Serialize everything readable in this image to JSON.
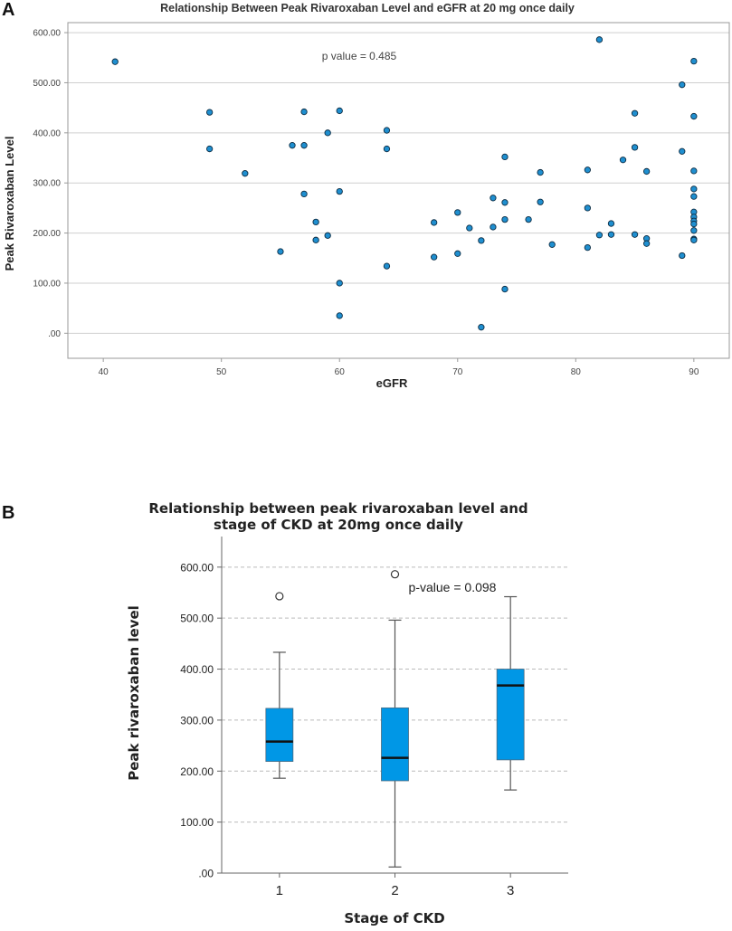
{
  "panels": {
    "a": "A",
    "b": "B"
  },
  "chart_data": [
    {
      "type": "scatter",
      "title": "Relationship Between Peak Rivaroxaban Level and eGFR at 20 mg once daily",
      "xlabel": "eGFR",
      "ylabel": "Peak Rivaroxaban Level",
      "xlim": [
        37,
        93
      ],
      "ylim": [
        -50,
        620
      ],
      "xticks": [
        40,
        50,
        60,
        70,
        80,
        90
      ],
      "yticks": [
        0,
        100,
        200,
        300,
        400,
        500,
        600
      ],
      "ytick_labels": [
        ".00",
        "100.00",
        "200.00",
        "300.00",
        "400.00",
        "500.00",
        "600.00"
      ],
      "grid": true,
      "annotation": "p value = 0.485",
      "marker_color": "#1f8fd0",
      "points": [
        [
          41,
          542
        ],
        [
          49,
          441
        ],
        [
          49,
          368
        ],
        [
          52,
          319
        ],
        [
          55,
          163
        ],
        [
          56,
          375
        ],
        [
          57,
          442
        ],
        [
          57,
          375
        ],
        [
          57,
          278
        ],
        [
          58,
          222
        ],
        [
          58,
          186
        ],
        [
          59,
          400
        ],
        [
          59,
          195
        ],
        [
          60,
          444
        ],
        [
          60,
          283
        ],
        [
          60,
          100
        ],
        [
          60,
          35
        ],
        [
          64,
          405
        ],
        [
          64,
          368
        ],
        [
          64,
          134
        ],
        [
          68,
          221
        ],
        [
          68,
          152
        ],
        [
          70,
          241
        ],
        [
          70,
          159
        ],
        [
          71,
          210
        ],
        [
          72,
          185
        ],
        [
          72,
          12
        ],
        [
          73,
          270
        ],
        [
          73,
          212
        ],
        [
          74,
          352
        ],
        [
          74,
          261
        ],
        [
          74,
          227
        ],
        [
          74,
          88
        ],
        [
          76,
          227
        ],
        [
          77,
          321
        ],
        [
          77,
          262
        ],
        [
          78,
          177
        ],
        [
          81,
          326
        ],
        [
          81,
          250
        ],
        [
          81,
          171
        ],
        [
          82,
          586
        ],
        [
          82,
          196
        ],
        [
          83,
          219
        ],
        [
          83,
          197
        ],
        [
          84,
          346
        ],
        [
          85,
          439
        ],
        [
          85,
          371
        ],
        [
          85,
          197
        ],
        [
          86,
          323
        ],
        [
          86,
          189
        ],
        [
          86,
          179
        ],
        [
          89,
          496
        ],
        [
          89,
          363
        ],
        [
          89,
          155
        ],
        [
          90,
          543
        ],
        [
          90,
          433
        ],
        [
          90,
          324
        ],
        [
          90,
          288
        ],
        [
          90,
          273
        ],
        [
          90,
          242
        ],
        [
          90,
          232
        ],
        [
          90,
          224
        ],
        [
          90,
          218
        ],
        [
          90,
          205
        ],
        [
          90,
          188
        ],
        [
          90,
          186
        ]
      ]
    },
    {
      "type": "box",
      "title_lines": [
        "Relationship between peak rivaroxaban level and",
        "stage of CKD at 20mg once daily"
      ],
      "xlabel": "Stage of CKD",
      "ylabel": "Peak rivaroxaban level",
      "categories": [
        "1",
        "2",
        "3"
      ],
      "ylim": [
        0,
        660
      ],
      "yticks": [
        0,
        100,
        200,
        300,
        400,
        500,
        600
      ],
      "ytick_labels": [
        ".00",
        "100.00",
        "200.00",
        "300.00",
        "400.00",
        "500.00",
        "600.00"
      ],
      "grid": true,
      "annotation": "p-value = 0.098",
      "box_color": "#0097e6",
      "boxes": [
        {
          "min": 186,
          "q1": 219,
          "median": 258,
          "q3": 323,
          "max": 433,
          "outliers": [
            543
          ]
        },
        {
          "min": 12,
          "q1": 181,
          "median": 226,
          "q3": 324,
          "max": 496,
          "outliers": [
            586
          ]
        },
        {
          "min": 163,
          "q1": 222,
          "median": 368,
          "q3": 400,
          "max": 542,
          "outliers": []
        }
      ]
    }
  ]
}
